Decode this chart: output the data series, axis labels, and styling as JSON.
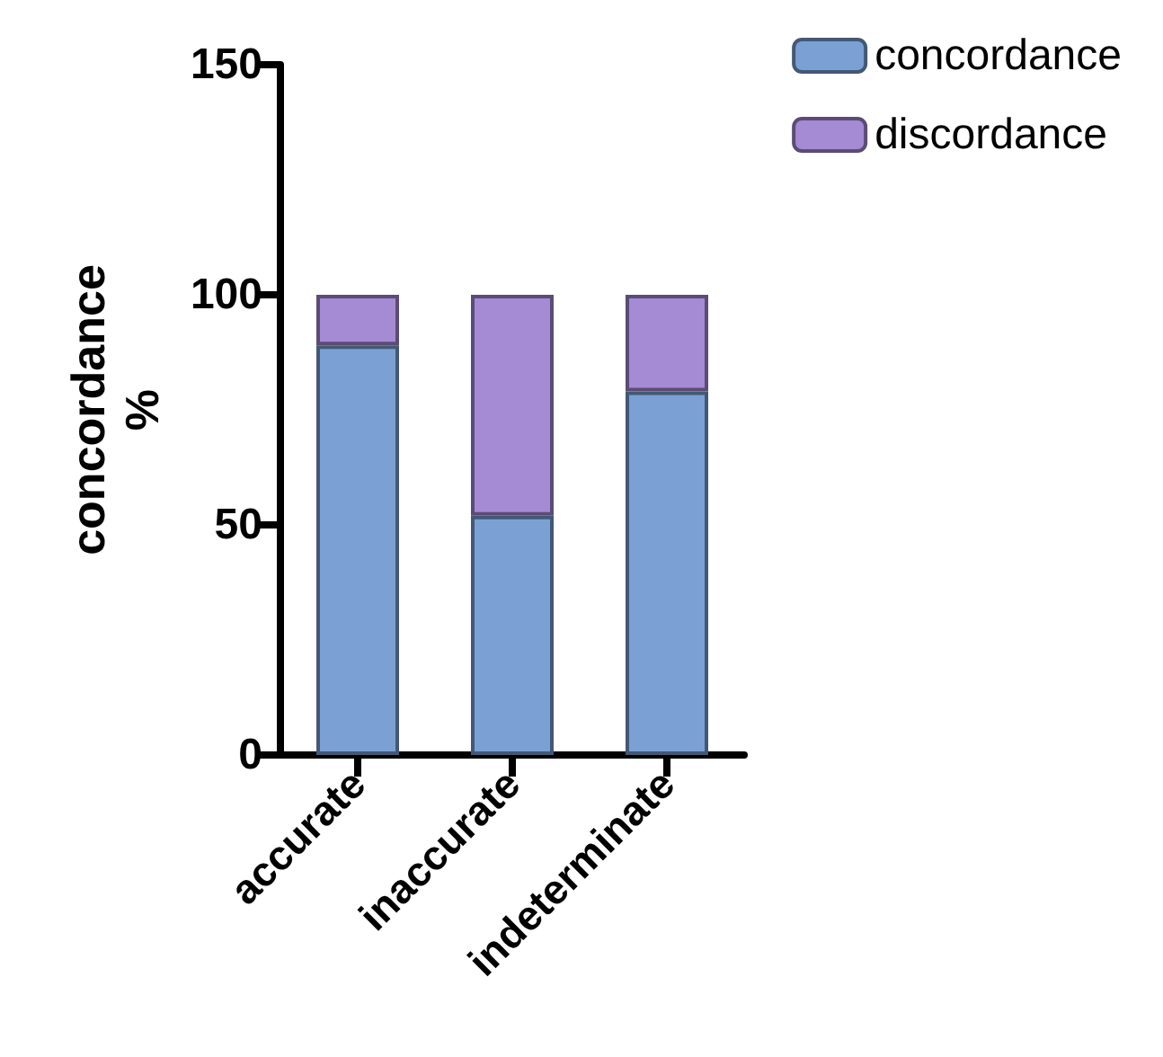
{
  "chart_data": {
    "type": "bar",
    "stacked": true,
    "ylabel": "concordance\n%",
    "categories": [
      "accurate",
      "inaccurate",
      "indeterminate"
    ],
    "series": [
      {
        "name": "concordance",
        "color": "#7ba0d4",
        "values": [
          89,
          52,
          79
        ]
      },
      {
        "name": "discordance",
        "color": "#a58ad4",
        "values": [
          11,
          48,
          21
        ]
      }
    ],
    "ylim": [
      0,
      150
    ],
    "yticks": [
      0,
      50,
      100,
      150
    ],
    "grid": false,
    "legend": "top right"
  }
}
